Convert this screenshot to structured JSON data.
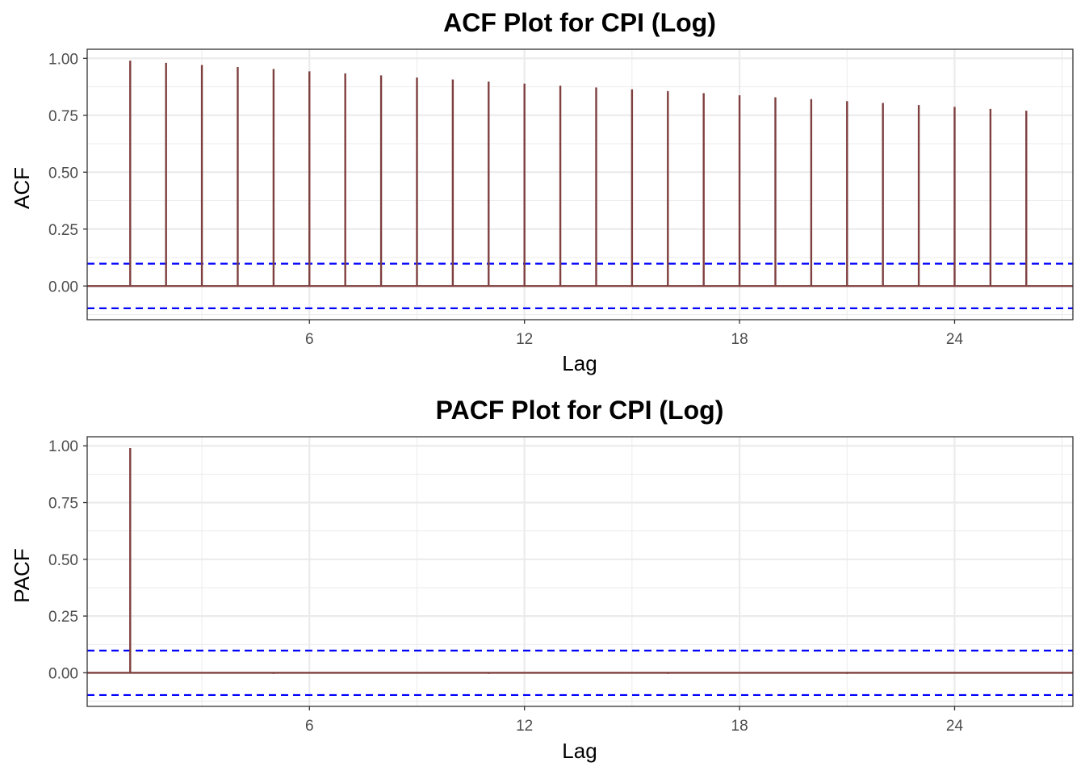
{
  "chart_data": [
    {
      "type": "bar",
      "title": "ACF Plot for CPI (Log)",
      "xlabel": "Lag",
      "ylabel": "ACF",
      "x": [
        1,
        2,
        3,
        4,
        5,
        6,
        7,
        8,
        9,
        10,
        11,
        12,
        13,
        14,
        15,
        16,
        17,
        18,
        19,
        20,
        21,
        22,
        23,
        24,
        25,
        26
      ],
      "values": [
        0.99,
        0.98,
        0.971,
        0.962,
        0.953,
        0.943,
        0.934,
        0.925,
        0.916,
        0.907,
        0.898,
        0.889,
        0.88,
        0.872,
        0.864,
        0.856,
        0.847,
        0.838,
        0.829,
        0.821,
        0.812,
        0.804,
        0.795,
        0.787,
        0.778,
        0.77
      ],
      "xlim": [
        -0.2,
        27.3
      ],
      "ylim": [
        -0.148,
        1.04
      ],
      "xticks": [
        6,
        12,
        18,
        24
      ],
      "xtick_labels": [
        "6",
        "12",
        "18",
        "24"
      ],
      "yticks": [
        0,
        0.25,
        0.5,
        0.75,
        1
      ],
      "ytick_labels": [
        "0.00",
        "0.25",
        "0.50",
        "0.75",
        "1.00"
      ],
      "confidence_bound": 0.098,
      "grid": true,
      "bar_color": "#7f3f3f",
      "bound_color": "#0000ff"
    },
    {
      "type": "bar",
      "title": "PACF Plot for CPI (Log)",
      "xlabel": "Lag",
      "ylabel": "PACF",
      "x": [
        1,
        2,
        3,
        4,
        5,
        6,
        7,
        8,
        9,
        10,
        11,
        12,
        13,
        14,
        15,
        16,
        17,
        18,
        19,
        20,
        21,
        22,
        23,
        24,
        25,
        26
      ],
      "values": [
        0.99,
        0.0,
        0.0,
        -0.004,
        -0.005,
        0.0,
        0.0,
        0.0,
        0.0,
        0.0,
        -0.005,
        0.0,
        0.0,
        0.0,
        0.0,
        -0.005,
        0.0,
        0.0,
        0.0,
        -0.004,
        -0.005,
        0.0,
        0.0,
        0.0,
        0.0,
        0.0
      ],
      "xlim": [
        -0.2,
        27.3
      ],
      "ylim": [
        -0.148,
        1.04
      ],
      "xticks": [
        6,
        12,
        18,
        24
      ],
      "xtick_labels": [
        "6",
        "12",
        "18",
        "24"
      ],
      "yticks": [
        0,
        0.25,
        0.5,
        0.75,
        1
      ],
      "ytick_labels": [
        "0.00",
        "0.25",
        "0.50",
        "0.75",
        "1.00"
      ],
      "confidence_bound": 0.098,
      "grid": true,
      "bar_color": "#7f3f3f",
      "bound_color": "#0000ff"
    }
  ]
}
